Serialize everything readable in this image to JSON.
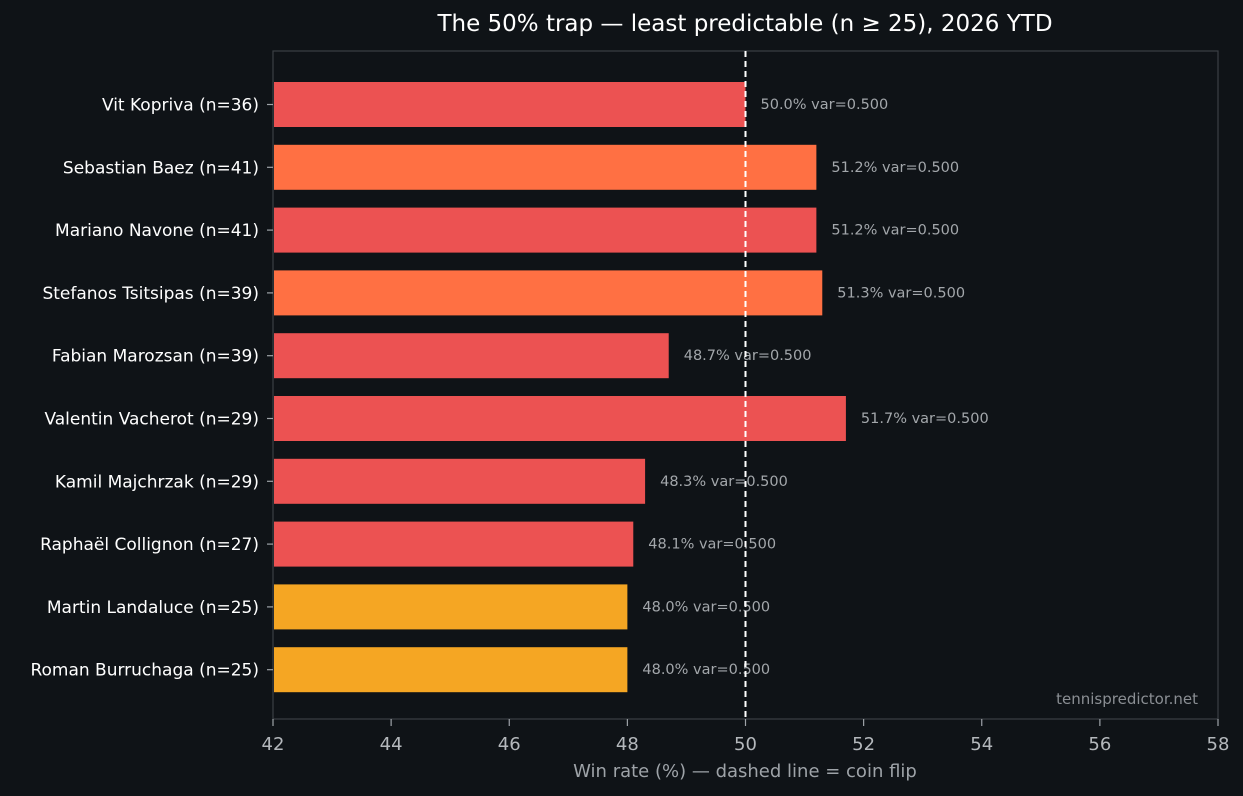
{
  "chart_data": {
    "type": "bar",
    "orientation": "horizontal",
    "title": "The 50% trap — least predictable (n ≥ 25), 2026 YTD",
    "xlabel": "Win rate (%) — dashed line = coin flip",
    "ylabel": "",
    "xlim": [
      42,
      58
    ],
    "xticks": [
      42,
      44,
      46,
      48,
      50,
      52,
      54,
      56,
      58
    ],
    "reference_line": {
      "x": 50,
      "style": "dashed",
      "color": "#ffffff"
    },
    "grid": false,
    "watermark": "tennispredictor.net",
    "colors": {
      "red": "#ec5252",
      "orange": "#ff7043",
      "amber": "#f5a623"
    },
    "bars": [
      {
        "label": "Vit Kopriva  (n=36)",
        "value": 50.0,
        "annotation": "50.0%  var=0.500",
        "color": "#ec5252"
      },
      {
        "label": "Sebastian Baez  (n=41)",
        "value": 51.2,
        "annotation": "51.2%  var=0.500",
        "color": "#ff7043"
      },
      {
        "label": "Mariano Navone  (n=41)",
        "value": 51.2,
        "annotation": "51.2%  var=0.500",
        "color": "#ec5252"
      },
      {
        "label": "Stefanos Tsitsipas  (n=39)",
        "value": 51.3,
        "annotation": "51.3%  var=0.500",
        "color": "#ff7043"
      },
      {
        "label": "Fabian Marozsan  (n=39)",
        "value": 48.7,
        "annotation": "48.7%  var=0.500",
        "color": "#ec5252"
      },
      {
        "label": "Valentin Vacherot  (n=29)",
        "value": 51.7,
        "annotation": "51.7%  var=0.500",
        "color": "#ec5252"
      },
      {
        "label": "Kamil Majchrzak  (n=29)",
        "value": 48.3,
        "annotation": "48.3%  var=0.500",
        "color": "#ec5252"
      },
      {
        "label": "Raphaël Collignon  (n=27)",
        "value": 48.1,
        "annotation": "48.1%  var=0.500",
        "color": "#ec5252"
      },
      {
        "label": "Martin Landaluce  (n=25)",
        "value": 48.0,
        "annotation": "48.0%  var=0.500",
        "color": "#f5a623"
      },
      {
        "label": "Roman Burruchaga  (n=25)",
        "value": 48.0,
        "annotation": "48.0%  var=0.500",
        "color": "#f5a623"
      }
    ]
  }
}
